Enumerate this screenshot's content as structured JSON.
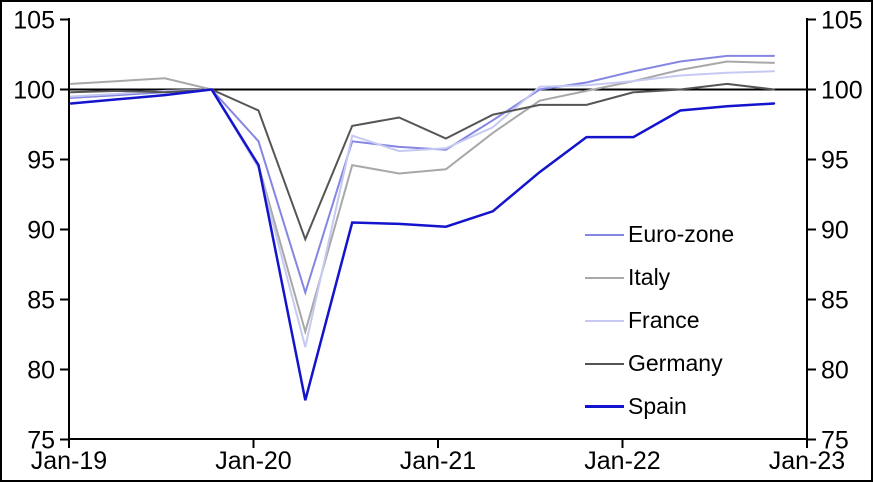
{
  "chart_data": {
    "type": "line",
    "title": "",
    "xlabel": "",
    "ylabel": "",
    "grid": false,
    "ylim": [
      75,
      105
    ],
    "y_ticks": [
      105,
      100,
      95,
      90,
      85,
      80,
      75
    ],
    "x_axis_ticks": [
      "Jan-19",
      "Jan-20",
      "Jan-21",
      "Jan-22",
      "Jan-23"
    ],
    "baseline": 100,
    "legend_position": "inside-lower-right",
    "quarters": [
      "2019Q1",
      "2019Q2",
      "2019Q3",
      "2019Q4",
      "2020Q1",
      "2020Q2",
      "2020Q3",
      "2020Q4",
      "2021Q1",
      "2021Q2",
      "2021Q3",
      "2021Q4",
      "2022Q1",
      "2022Q2",
      "2022Q3",
      "2022Q4"
    ],
    "series": [
      {
        "name": "Euro-zone",
        "color": "#8486e2",
        "line_width": 2,
        "values": [
          99.4,
          99.6,
          99.8,
          100.0,
          96.3,
          85.5,
          96.3,
          95.9,
          95.7,
          97.8,
          100.0,
          100.5,
          101.3,
          102.0,
          102.4,
          102.4
        ]
      },
      {
        "name": "Italy",
        "color": "#a8a8a8",
        "line_width": 2,
        "values": [
          100.4,
          100.6,
          100.8,
          100.0,
          94.6,
          82.7,
          94.6,
          94.0,
          94.3,
          96.9,
          99.2,
          99.9,
          100.6,
          101.4,
          102.0,
          101.9
        ]
      },
      {
        "name": "France",
        "color": "#c6c9f1",
        "line_width": 2,
        "values": [
          99.5,
          99.7,
          99.9,
          100.0,
          94.4,
          81.6,
          96.7,
          95.6,
          95.8,
          97.3,
          100.2,
          100.3,
          100.6,
          101.0,
          101.2,
          101.3
        ]
      },
      {
        "name": "Germany",
        "color": "#555555",
        "line_width": 2,
        "values": [
          99.8,
          99.9,
          99.8,
          100.0,
          98.5,
          89.3,
          97.4,
          98.0,
          96.5,
          98.2,
          98.9,
          98.9,
          99.8,
          100.0,
          100.4,
          100.0
        ]
      },
      {
        "name": "Spain",
        "color": "#1414cd",
        "line_width": 2.5,
        "values": [
          99.0,
          99.3,
          99.6,
          100.0,
          94.6,
          77.8,
          90.5,
          90.4,
          90.2,
          91.3,
          94.1,
          96.6,
          96.6,
          98.5,
          98.8,
          99.0
        ]
      }
    ]
  }
}
